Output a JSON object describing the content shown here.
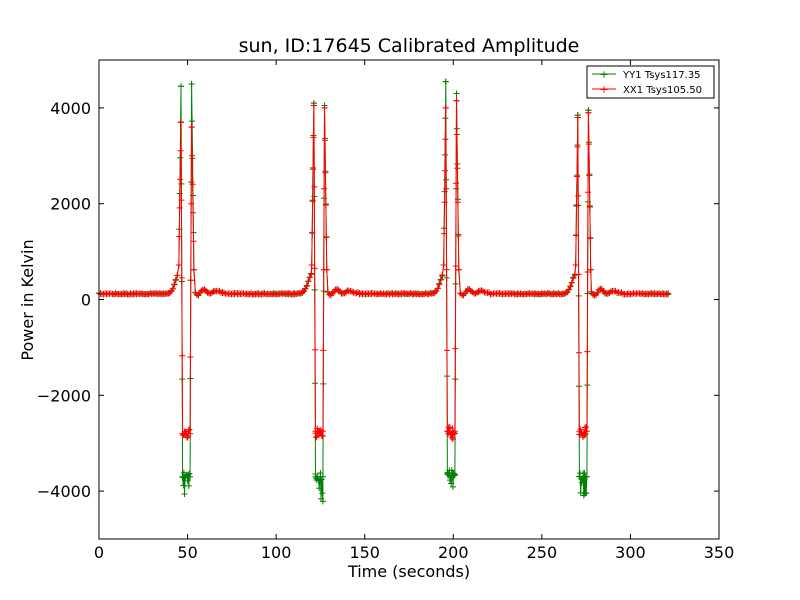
{
  "chart_data": {
    "type": "line",
    "title": "sun, ID:17645 Calibrated Amplitude",
    "xlabel": "Time (seconds)",
    "ylabel": "Power in Kelvin",
    "xlim": [
      0,
      350
    ],
    "ylim": [
      -5000,
      5000
    ],
    "x_ticks": [
      0,
      50,
      100,
      150,
      200,
      250,
      300,
      350
    ],
    "y_ticks": [
      -4000,
      -2000,
      0,
      2000,
      4000
    ],
    "y_tick_labels": [
      "−4000",
      "−2000",
      "0",
      "2000",
      "4000"
    ],
    "grid": false,
    "legend_position": "top-right",
    "marker": "+",
    "x_range": [
      0,
      322
    ],
    "baseline_level": 120,
    "series": [
      {
        "name": "YY1 Tsys117.35",
        "color": "#008000",
        "spikes": [
          {
            "up1": [
              46.3,
              4450
            ],
            "down_center": 49.3,
            "down_level": -3700,
            "down_min": -4100,
            "up2": [
              52.3,
              4500
            ]
          },
          {
            "up1": [
              121.3,
              4100
            ],
            "down_center": 124.3,
            "down_level": -3700,
            "down_min": -4150,
            "up2": [
              127.3,
              4050
            ]
          },
          {
            "up1": [
              195.8,
              4550
            ],
            "down_center": 198.8,
            "down_level": -3650,
            "down_min": -4050,
            "up2": [
              201.8,
              4300
            ]
          },
          {
            "up1": [
              270.3,
              3850
            ],
            "down_center": 273.3,
            "down_level": -3700,
            "down_min": -4150,
            "up2": [
              276.3,
              3950
            ]
          }
        ]
      },
      {
        "name": "XX1 Tsys105.50",
        "color": "#ff0000",
        "spikes": [
          {
            "up1": [
              46.3,
              3700
            ],
            "down_center": 49.3,
            "down_level": -2800,
            "down_min": -2850,
            "up2": [
              52.3,
              3600
            ]
          },
          {
            "up1": [
              121.3,
              4050
            ],
            "down_center": 124.3,
            "down_level": -2750,
            "down_min": -2850,
            "up2": [
              127.3,
              4000
            ]
          },
          {
            "up1": [
              195.8,
              4000
            ],
            "down_center": 198.8,
            "down_level": -2750,
            "down_min": -2850,
            "up2": [
              201.8,
              4150
            ]
          },
          {
            "up1": [
              270.3,
              3800
            ],
            "down_center": 273.3,
            "down_level": -2750,
            "down_min": -2850,
            "up2": [
              276.3,
              3900
            ]
          }
        ]
      }
    ]
  }
}
